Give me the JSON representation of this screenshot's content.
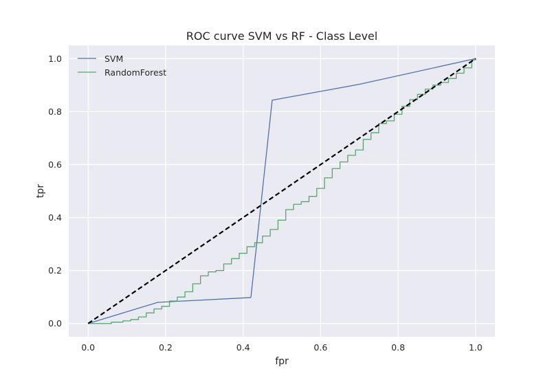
{
  "chart_data": {
    "type": "line",
    "title": "ROC curve SVM vs RF - Class Level",
    "xlabel": "fpr",
    "ylabel": "tpr",
    "xlim": [
      -0.05,
      1.05
    ],
    "ylim": [
      -0.05,
      1.05
    ],
    "xticks": [
      0.0,
      0.2,
      0.4,
      0.6,
      0.8,
      1.0
    ],
    "yticks": [
      0.0,
      0.2,
      0.4,
      0.6,
      0.8,
      1.0
    ],
    "xtick_labels": [
      "0.0",
      "0.2",
      "0.4",
      "0.6",
      "0.8",
      "1.0"
    ],
    "ytick_labels": [
      "0.0",
      "0.2",
      "0.4",
      "0.6",
      "0.8",
      "1.0"
    ],
    "grid": true,
    "legend_position": "top-left",
    "background": "#eaeaf2",
    "series": [
      {
        "name": "SVM",
        "color": "#4c72b0",
        "step": false,
        "x": [
          0.0,
          0.18,
          0.42,
          0.475,
          0.7,
          1.0
        ],
        "y": [
          0.0,
          0.08,
          0.098,
          0.843,
          0.903,
          1.0
        ]
      },
      {
        "name": "RandomForest",
        "color": "#55a868",
        "step": true,
        "x": [
          0.0,
          0.03,
          0.06,
          0.09,
          0.11,
          0.13,
          0.15,
          0.17,
          0.19,
          0.21,
          0.23,
          0.25,
          0.27,
          0.29,
          0.31,
          0.33,
          0.35,
          0.37,
          0.39,
          0.41,
          0.43,
          0.45,
          0.47,
          0.49,
          0.51,
          0.53,
          0.55,
          0.57,
          0.59,
          0.61,
          0.63,
          0.65,
          0.67,
          0.69,
          0.71,
          0.73,
          0.75,
          0.77,
          0.79,
          0.81,
          0.83,
          0.85,
          0.87,
          0.89,
          0.91,
          0.93,
          0.95,
          0.97,
          0.99,
          1.0
        ],
        "y": [
          0.0,
          0.0,
          0.005,
          0.01,
          0.015,
          0.025,
          0.04,
          0.055,
          0.065,
          0.085,
          0.1,
          0.12,
          0.15,
          0.18,
          0.195,
          0.2,
          0.225,
          0.245,
          0.265,
          0.29,
          0.305,
          0.33,
          0.355,
          0.39,
          0.43,
          0.45,
          0.46,
          0.48,
          0.51,
          0.55,
          0.585,
          0.61,
          0.635,
          0.655,
          0.695,
          0.72,
          0.755,
          0.765,
          0.79,
          0.82,
          0.845,
          0.865,
          0.885,
          0.9,
          0.91,
          0.925,
          0.945,
          0.965,
          0.995,
          1.0
        ]
      },
      {
        "name": "",
        "color": "#000000",
        "dashed": true,
        "x": [
          0.0,
          1.0
        ],
        "y": [
          0.0,
          1.0
        ]
      }
    ]
  }
}
